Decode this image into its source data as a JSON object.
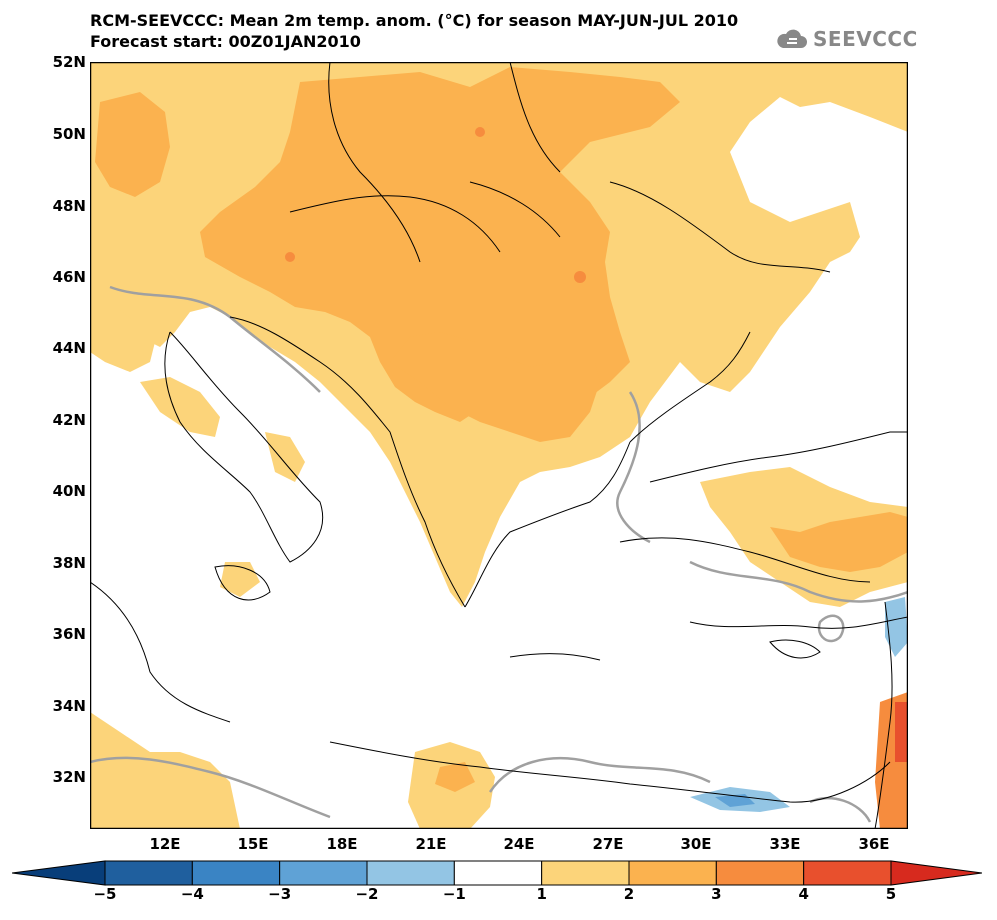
{
  "title": {
    "line1": "RCM-SEEVCCC: Mean 2m temp. anom. (°C) for season MAY-JUN-JUL 2010",
    "line2": "Forecast start: 00Z01JAN2010"
  },
  "logo": {
    "text": "SEEVCCC",
    "icon": "cloud-icon"
  },
  "latitude_labels": [
    "52N",
    "50N",
    "48N",
    "46N",
    "44N",
    "42N",
    "40N",
    "38N",
    "36N",
    "34N",
    "32N"
  ],
  "longitude_labels": [
    "12E",
    "15E",
    "18E",
    "21E",
    "24E",
    "27E",
    "30E",
    "33E",
    "36E"
  ],
  "colorbar": {
    "labels": [
      "−5",
      "−4",
      "−3",
      "−2",
      "−1",
      "1",
      "2",
      "3",
      "4",
      "5"
    ],
    "colors": [
      "#1f5f9e",
      "#3a84c4",
      "#5fa2d6",
      "#93c5e4",
      "#ffffff",
      "#fcd47a",
      "#fbb24f",
      "#f68c3e",
      "#e8502d"
    ],
    "under_color": "#083e7a",
    "over_color": "#d72a1e"
  },
  "map_colors": {
    "anom_1_2": "#fcd47a",
    "anom_2_3": "#fbb24f",
    "anom_3_4": "#f68c3e",
    "anom_4_5": "#e8502d",
    "anom_m1_m2": "#93c5e4",
    "anom_m2_m3": "#5fa2d6",
    "coast": "#000000",
    "orography": "#a0a0a0"
  }
}
